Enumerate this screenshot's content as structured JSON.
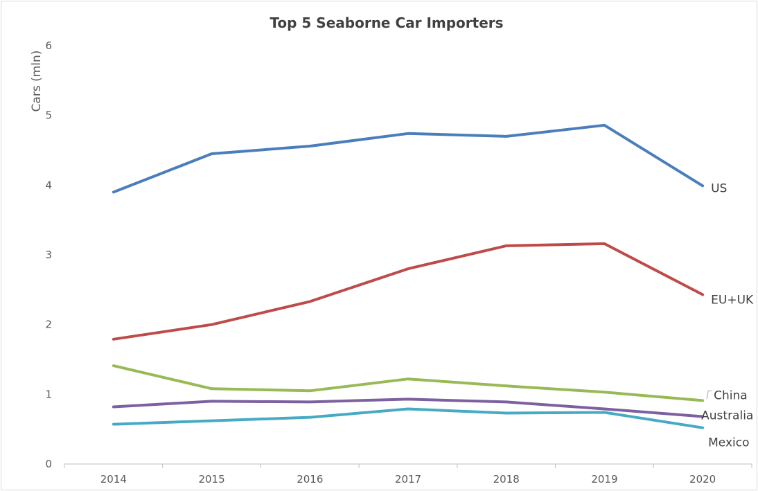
{
  "chart_data": {
    "type": "line",
    "title": "Top 5 Seaborne Car Importers",
    "xlabel": "",
    "ylabel": "Cars (mln)",
    "x": [
      "2014",
      "2015",
      "2016",
      "2017",
      "2018",
      "2019",
      "2020"
    ],
    "y_ticks": [
      "0",
      "1",
      "2",
      "3",
      "4",
      "5",
      "6"
    ],
    "ylim": [
      0,
      6
    ],
    "grid": false,
    "legend": "none (series labelled at line ends)",
    "series": [
      {
        "name": "US",
        "color": "#4a7ebb",
        "values": [
          3.9,
          4.45,
          4.56,
          4.74,
          4.7,
          4.86,
          3.99
        ]
      },
      {
        "name": "EU+UK",
        "color": "#be4b48",
        "values": [
          1.79,
          2.0,
          2.33,
          2.8,
          3.13,
          3.16,
          2.43
        ]
      },
      {
        "name": "China",
        "color": "#98b954",
        "values": [
          1.41,
          1.08,
          1.05,
          1.22,
          1.12,
          1.03,
          0.91
        ]
      },
      {
        "name": "Australia",
        "color": "#7d60a0",
        "values": [
          0.82,
          0.9,
          0.89,
          0.93,
          0.89,
          0.79,
          0.68
        ]
      },
      {
        "name": "Mexico",
        "color": "#46aac5",
        "values": [
          0.57,
          0.62,
          0.67,
          0.79,
          0.73,
          0.74,
          0.52
        ]
      }
    ]
  }
}
